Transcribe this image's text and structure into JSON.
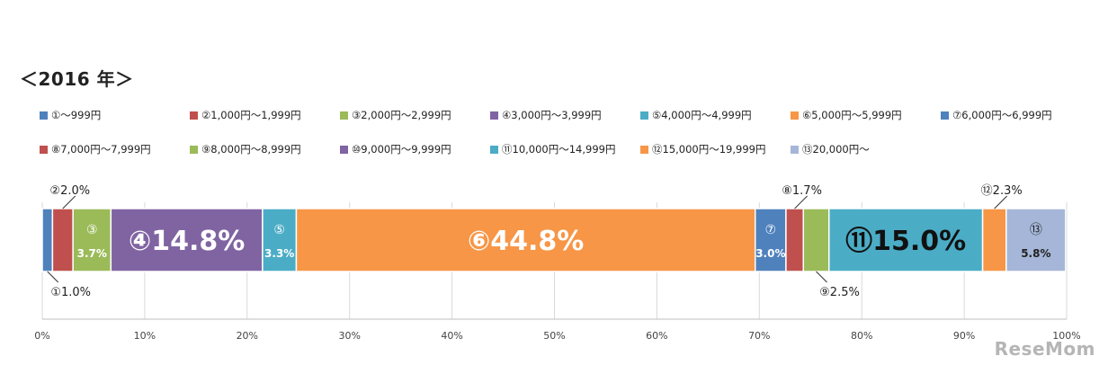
{
  "heading": "＜2016 年＞",
  "watermark": "ReseMom",
  "chart_data": {
    "type": "bar",
    "orientation": "horizontal-stacked-100",
    "title": "",
    "xlim": [
      0,
      100
    ],
    "ticks": [
      "0%",
      "10%",
      "20%",
      "30%",
      "40%",
      "50%",
      "60%",
      "70%",
      "80%",
      "90%",
      "100%"
    ],
    "legend_position": "top",
    "segments": [
      {
        "name": "①～999円",
        "value": 1.0,
        "color": "#4f81bd",
        "label_num": "①",
        "label_val": "1.0%",
        "label_style": "below-callout"
      },
      {
        "name": "②1,000円～1,999円",
        "value": 2.0,
        "color": "#c0504d",
        "label_num": "②",
        "label_val": "2.0%",
        "label_style": "above-callout"
      },
      {
        "name": "③2,000円～2,999円",
        "value": 3.7,
        "color": "#9bbb59",
        "label_num": "③",
        "label_val": "3.7%",
        "label_style": "inside-two-line"
      },
      {
        "name": "④3,000円～3,999円",
        "value": 14.8,
        "color": "#8064a2",
        "label_num": "④",
        "label_val": "14.8%",
        "label_style": "inside-large"
      },
      {
        "name": "⑤4,000円～4,999円",
        "value": 3.3,
        "color": "#4bacc6",
        "label_num": "⑤",
        "label_val": "3.3%",
        "label_style": "inside-two-line"
      },
      {
        "name": "⑥5,000円～5,999円",
        "value": 44.8,
        "color": "#f79646",
        "label_num": "⑥",
        "label_val": "44.8%",
        "label_style": "inside-large"
      },
      {
        "name": "⑦6,000円～6,999円",
        "value": 3.0,
        "color": "#4f81bd",
        "label_num": "⑦",
        "label_val": "3.0%",
        "label_style": "inside-two-line"
      },
      {
        "name": "⑧7,000円～7,999円",
        "value": 1.7,
        "color": "#c0504d",
        "label_num": "⑧",
        "label_val": "1.7%",
        "label_style": "above-callout"
      },
      {
        "name": "⑨8,000円～8,999円",
        "value": 2.5,
        "color": "#9bbb59",
        "label_num": "⑨",
        "label_val": "2.5%",
        "label_style": "below-callout"
      },
      {
        "name": "⑩9,000円～9,999円",
        "value": 0.0,
        "color": "#8064a2",
        "label_num": "⑩",
        "label_val": "",
        "label_style": "none"
      },
      {
        "name": "⑪10,000円～14,999円",
        "value": 15.0,
        "color": "#4bacc6",
        "label_num": "⑪",
        "label_val": "15.0%",
        "label_style": "inside-large-dark"
      },
      {
        "name": "⑫15,000円～19,999円",
        "value": 2.3,
        "color": "#f79646",
        "label_num": "⑫",
        "label_val": "2.3%",
        "label_style": "above-callout"
      },
      {
        "name": "⑬20,000円～",
        "value": 5.8,
        "color": "#a5b6d8",
        "label_num": "⑬",
        "label_val": "5.8%",
        "label_style": "inside-two-line-dark"
      }
    ]
  },
  "legend": {
    "rows": [
      [
        {
          "label": "①～999円",
          "color": "#4f81bd"
        },
        {
          "label": "②1,000円～1,999円",
          "color": "#c0504d"
        },
        {
          "label": "③2,000円～2,999円",
          "color": "#9bbb59"
        },
        {
          "label": "④3,000円～3,999円",
          "color": "#8064a2"
        },
        {
          "label": "⑤4,000円～4,999円",
          "color": "#4bacc6"
        },
        {
          "label": "⑥5,000円～5,999円",
          "color": "#f79646"
        },
        {
          "label": "⑦6,000円～6,999円",
          "color": "#4f81bd"
        }
      ],
      [
        {
          "label": "⑧7,000円～7,999円",
          "color": "#c0504d"
        },
        {
          "label": "⑨8,000円～8,999円",
          "color": "#9bbb59"
        },
        {
          "label": "⑩9,000円～9,999円",
          "color": "#8064a2"
        },
        {
          "label": "⑪10,000円～14,999円",
          "color": "#4bacc6"
        },
        {
          "label": "⑫15,000円～19,999円",
          "color": "#f79646"
        },
        {
          "label": "⑬20,000円～",
          "color": "#a5b6d8"
        }
      ]
    ]
  }
}
